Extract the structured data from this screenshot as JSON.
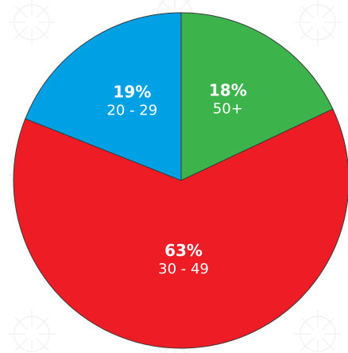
{
  "chart_data": {
    "type": "pie",
    "start_angle_deg": 0,
    "direction": "clockwise",
    "stroke_color": "#3a3a3a",
    "label_color": "#ffffff",
    "slices": [
      {
        "category": "50+",
        "value": 18,
        "label": "18%",
        "color": "#3cb44b"
      },
      {
        "category": "30 - 49",
        "value": 63,
        "label": "63%",
        "color": "#ee1c25"
      },
      {
        "category": "20 - 29",
        "value": 19,
        "label": "19%",
        "color": "#00a0e4"
      }
    ]
  }
}
